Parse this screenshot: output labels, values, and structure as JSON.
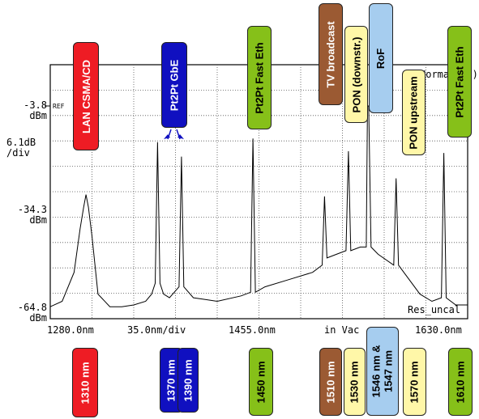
{
  "colors": {
    "red": "#ee1c24",
    "blue": "#1010c0",
    "green": "#86c019",
    "brown": "#9b5a33",
    "yellow": "#fff7a8",
    "lightblue": "#a6cdef"
  },
  "instrument": {
    "ref_value": "-3.8",
    "ref_unit": "dBm",
    "ref_marker": "REF",
    "scale_value": "6.1dB",
    "scale_unit": "/div",
    "mid_value": "-34.3",
    "mid_unit": "dBm",
    "low_value": "-64.8",
    "low_unit": "dBm",
    "x_start": "1280.0nm",
    "x_div": "35.0nm/div",
    "x_center": "1455.0nm",
    "medium": "in Vac",
    "x_end": "1630.0nm",
    "mode": "Normal(",
    "mode_suffix": ")",
    "resolution": "Res_uncal"
  },
  "top_tags": [
    {
      "label": "LAN CSMA/CD",
      "color": "red",
      "style": "dark"
    },
    {
      "label": "Pt2Pt GbE",
      "color": "blue",
      "style": "dark"
    },
    {
      "label": "Pt2Pt Fast Eth",
      "color": "green",
      "style": "light"
    },
    {
      "label": "TV broadcast",
      "color": "brown",
      "style": "dark"
    },
    {
      "label": "PON (downstr.)",
      "color": "yellow",
      "style": "light"
    },
    {
      "label": "RoF",
      "color": "lightblue",
      "style": "light"
    },
    {
      "label": "PON upstream",
      "color": "yellow",
      "style": "light"
    },
    {
      "label": "Pt2Pt Fast Eth",
      "color": "green",
      "style": "light"
    }
  ],
  "bottom_tags": [
    {
      "label": "1310 nm",
      "color": "red",
      "style": "dark"
    },
    {
      "label": "1370 nm",
      "color": "blue",
      "style": "dark"
    },
    {
      "label": "1390 nm",
      "color": "blue",
      "style": "dark"
    },
    {
      "label": "1450 nm",
      "color": "green",
      "style": "light"
    },
    {
      "label": "1510 nm",
      "color": "brown",
      "style": "dark"
    },
    {
      "label": "1530 nm",
      "color": "yellow",
      "style": "light"
    },
    {
      "label": "1546 nm &\n1547 nm",
      "color": "lightblue",
      "style": "light"
    },
    {
      "label": "1570 nm",
      "color": "yellow",
      "style": "light"
    },
    {
      "label": "1610 nm",
      "color": "green",
      "style": "light"
    }
  ],
  "chart_data": {
    "type": "line",
    "x_unit": "nm",
    "y_unit": "dBm",
    "xlim": [
      1280,
      1630
    ],
    "ylim": [
      -64.8,
      5.4
    ],
    "grid": true,
    "x": [
      1280,
      1290,
      1300,
      1305,
      1308,
      1310,
      1312,
      1315,
      1320,
      1330,
      1340,
      1350,
      1360,
      1365,
      1368,
      1370,
      1372,
      1375,
      1380,
      1388,
      1390,
      1392,
      1400,
      1420,
      1440,
      1448,
      1450,
      1452,
      1460,
      1480,
      1500,
      1508,
      1510,
      1512,
      1520,
      1528,
      1530,
      1532,
      1540,
      1545,
      1546,
      1547,
      1549,
      1555,
      1568,
      1570,
      1572,
      1590,
      1600,
      1608,
      1610,
      1612,
      1620,
      1630
    ],
    "series": [
      {
        "values": [
          -61.5,
          -60.0,
          -52.0,
          -40.0,
          -34.0,
          -30.5,
          -34.0,
          -42.0,
          -58.0,
          -61.5,
          -61.5,
          -61.0,
          -60.0,
          -58.0,
          -55.0,
          -16.0,
          -55.0,
          -58.0,
          -59.0,
          -56.0,
          -20.0,
          -56.0,
          -59.0,
          -60.0,
          -58.5,
          -57.5,
          -15.0,
          -57.5,
          -56.0,
          -54.0,
          -52.0,
          -50.0,
          -31.0,
          -48.0,
          -47.0,
          -46.0,
          -18.5,
          -46.0,
          -45.0,
          -45.0,
          -6.0,
          -6.0,
          -45.0,
          -47.0,
          -50.0,
          -26.0,
          -50.0,
          -58.0,
          -60.0,
          -59.0,
          -19.0,
          -59.0,
          -61.0,
          -61.0
        ]
      }
    ]
  }
}
